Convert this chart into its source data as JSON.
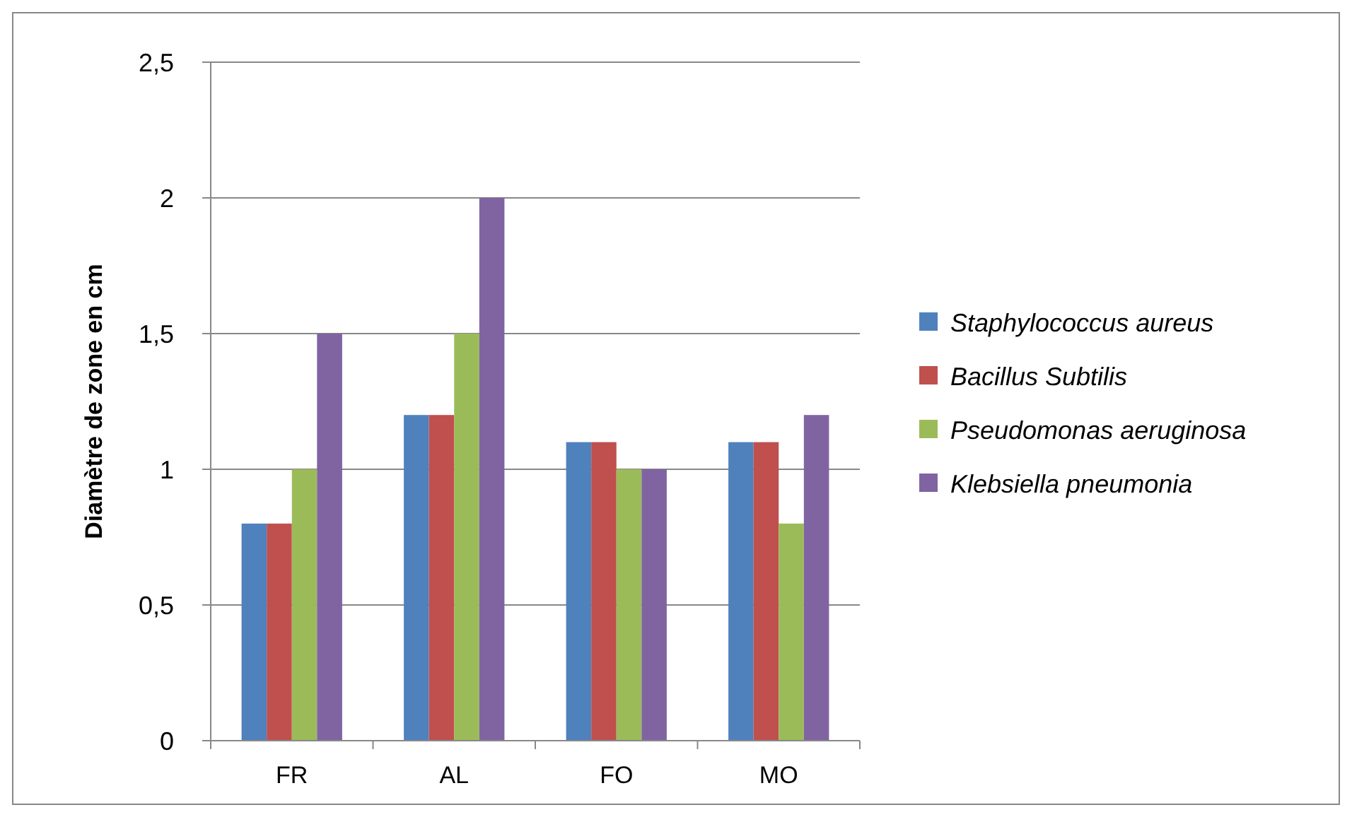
{
  "chart_data": {
    "type": "bar",
    "ylabel": "Diamètre de zone en cm",
    "categories": [
      "FR",
      "AL",
      "FO",
      "MO"
    ],
    "series": [
      {
        "name": "Staphylococcus aureus",
        "color": "#4f81bd",
        "values": [
          0.8,
          1.2,
          1.1,
          1.1
        ]
      },
      {
        "name": "Bacillus Subtilis",
        "color": "#c0504d",
        "values": [
          0.8,
          1.2,
          1.1,
          1.1
        ]
      },
      {
        "name": "Pseudomonas aeruginosa",
        "color": "#9bbb59",
        "values": [
          1,
          1.5,
          1,
          0.8
        ]
      },
      {
        "name": "Klebsiella pneumonia",
        "color": "#8064a2",
        "values": [
          1.5,
          2,
          1,
          1.2
        ]
      }
    ],
    "ylim": [
      0,
      2.5
    ],
    "yticks": [
      0,
      {
        "value": 0.5,
        "label": "0,5"
      },
      1,
      {
        "value": 1.5,
        "label": "1,5"
      },
      2,
      {
        "value": 2.5,
        "label": "2,5"
      }
    ],
    "grid": "y",
    "legend": "right"
  }
}
